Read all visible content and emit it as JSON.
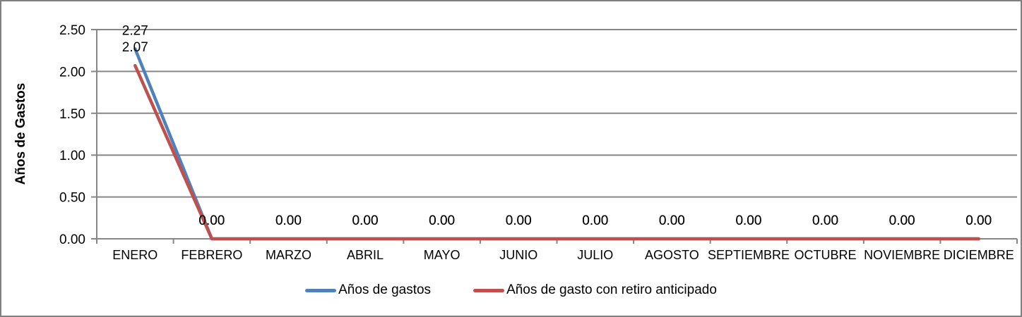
{
  "chart_data": {
    "type": "line",
    "title": "",
    "xlabel": "",
    "ylabel": "Años de Gastos",
    "categories": [
      "ENERO",
      "FEBRERO",
      "MARZO",
      "ABRIL",
      "MAYO",
      "JUNIO",
      "JULIO",
      "AGOSTO",
      "SEPTIEMBRE",
      "OCTUBRE",
      "NOVIEMBRE",
      "DICIEMBRE"
    ],
    "series": [
      {
        "name": "Años de gastos",
        "color": "#4F81BD",
        "values": [
          2.27,
          0.0,
          0.0,
          0.0,
          0.0,
          0.0,
          0.0,
          0.0,
          0.0,
          0.0,
          0.0,
          0.0
        ]
      },
      {
        "name": "Años de gasto con retiro anticipado",
        "color": "#C0504D",
        "values": [
          2.07,
          0.0,
          0.0,
          0.0,
          0.0,
          0.0,
          0.0,
          0.0,
          0.0,
          0.0,
          0.0,
          0.0
        ]
      }
    ],
    "ylim": [
      0,
      2.5
    ],
    "yticks": [
      "0.00",
      "0.50",
      "1.00",
      "1.50",
      "2.00",
      "2.50"
    ],
    "grid": true,
    "data_labels": true,
    "legend_position": "bottom",
    "colors": {
      "axis": "#878787",
      "gridline": "#878787",
      "text": "#000000",
      "frame_border": "#808080"
    }
  }
}
